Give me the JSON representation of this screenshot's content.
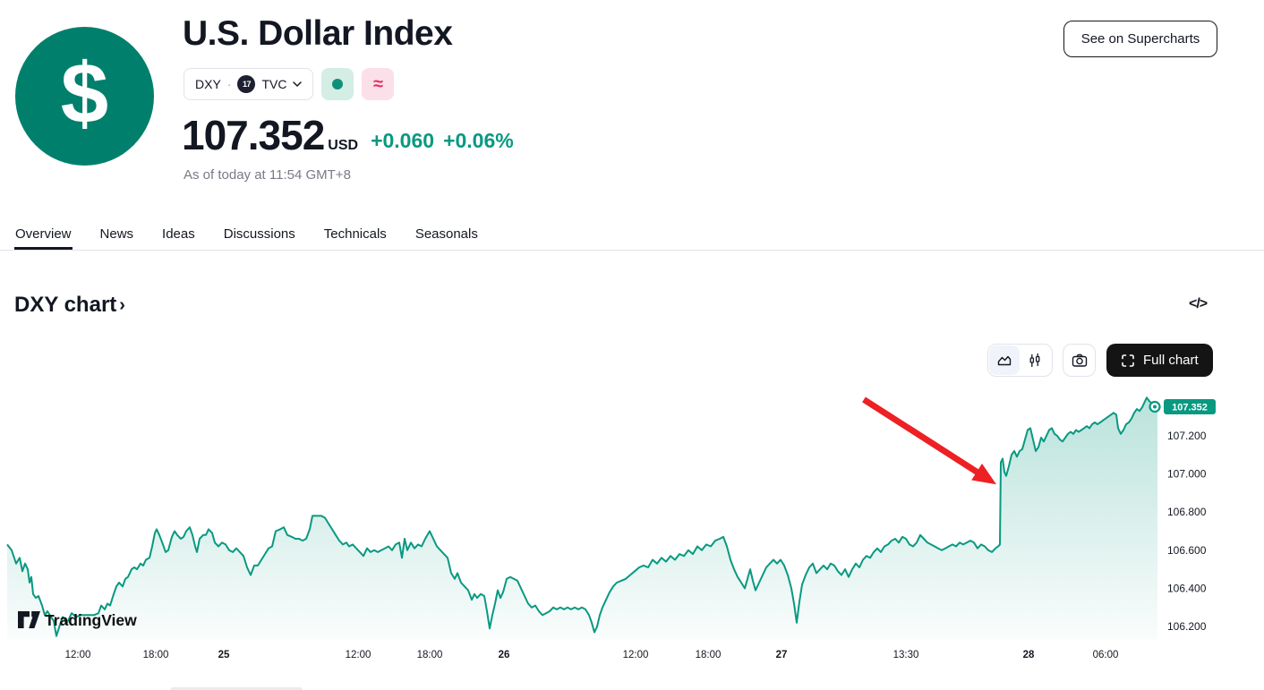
{
  "header": {
    "logo_symbol": "$",
    "title": "U.S. Dollar Index",
    "symbol": "DXY",
    "separator": "·",
    "exchange_logo_text": "17",
    "exchange": "TVC",
    "delayed_symbol": "≈",
    "price": "107.352",
    "currency": "USD",
    "change_abs": "+0.060",
    "change_pct": "+0.06%",
    "as_of": "As of today at 11:54 GMT+8",
    "supercharts_button": "See on Supercharts"
  },
  "tabs": {
    "items": [
      "Overview",
      "News",
      "Ideas",
      "Discussions",
      "Technicals",
      "Seasonals"
    ],
    "active": "Overview"
  },
  "section": {
    "title": "DXY chart",
    "chevron": "›",
    "embed_icon_text": "</>"
  },
  "toolbar": {
    "full_chart_label": "Full chart"
  },
  "watermark": "TradingView",
  "colors": {
    "accent_green": "#089981",
    "logo_bg": "#00806c",
    "market_open_bg": "#d4ede5",
    "market_open_dot": "#0e9178",
    "delayed_bg": "#fbdfe9",
    "delayed_fg": "#e32d5f",
    "arrow_red": "#ed2024",
    "axis_text": "#131722",
    "muted_text": "#787b86",
    "border": "#e0e3eb",
    "button_dark": "#141414"
  },
  "chart_data": {
    "type": "area",
    "title": "DXY chart",
    "legend": "none",
    "grid": false,
    "axis_side": "right",
    "ylim": [
      106.13,
      107.42
    ],
    "x_domain": [
      0,
      1295
    ],
    "y_ticks": [
      {
        "value": 107.2,
        "label": "107.200"
      },
      {
        "value": 107.0,
        "label": "107.000"
      },
      {
        "value": 106.8,
        "label": "106.800"
      },
      {
        "value": 106.6,
        "label": "106.600"
      },
      {
        "value": 106.4,
        "label": "106.400"
      },
      {
        "value": 106.2,
        "label": "106.200"
      }
    ],
    "x_ticks": [
      {
        "x": 87,
        "label": "12:00",
        "bold": false
      },
      {
        "x": 174,
        "label": "18:00",
        "bold": false
      },
      {
        "x": 250,
        "label": "25",
        "bold": true
      },
      {
        "x": 400,
        "label": "12:00",
        "bold": false
      },
      {
        "x": 480,
        "label": "18:00",
        "bold": false
      },
      {
        "x": 563,
        "label": "26",
        "bold": true
      },
      {
        "x": 710,
        "label": "12:00",
        "bold": false
      },
      {
        "x": 791,
        "label": "18:00",
        "bold": false
      },
      {
        "x": 873,
        "label": "27",
        "bold": true
      },
      {
        "x": 1012,
        "label": "13:30",
        "bold": false
      },
      {
        "x": 1149,
        "label": "28",
        "bold": true
      },
      {
        "x": 1235,
        "label": "06:00",
        "bold": false
      }
    ],
    "last_price_label": "107.352",
    "line_color": "#089981",
    "annotations": [
      {
        "type": "arrow",
        "from": [
          965,
          107.39
        ],
        "to": [
          1113,
          106.945
        ],
        "color": "#ed2024"
      }
    ],
    "points": [
      [
        8,
        106.63
      ],
      [
        13,
        106.6
      ],
      [
        18,
        106.53
      ],
      [
        22,
        106.56
      ],
      [
        25,
        106.49
      ],
      [
        28,
        106.53
      ],
      [
        31,
        106.5
      ],
      [
        33,
        106.43
      ],
      [
        35,
        106.46
      ],
      [
        37,
        106.37
      ],
      [
        40,
        106.35
      ],
      [
        43,
        106.36
      ],
      [
        47,
        106.31
      ],
      [
        50,
        106.26
      ],
      [
        53,
        106.28
      ],
      [
        57,
        106.25
      ],
      [
        60,
        106.23
      ],
      [
        63,
        106.15
      ],
      [
        67,
        106.21
      ],
      [
        70,
        106.25
      ],
      [
        75,
        106.22
      ],
      [
        80,
        106.27
      ],
      [
        85,
        106.25
      ],
      [
        90,
        106.26
      ],
      [
        95,
        106.26
      ],
      [
        100,
        106.26
      ],
      [
        105,
        106.26
      ],
      [
        110,
        106.27
      ],
      [
        113,
        106.31
      ],
      [
        117,
        106.29
      ],
      [
        120,
        106.32
      ],
      [
        123,
        106.31
      ],
      [
        127,
        106.37
      ],
      [
        130,
        106.41
      ],
      [
        133,
        106.43
      ],
      [
        137,
        106.41
      ],
      [
        140,
        106.45
      ],
      [
        143,
        106.46
      ],
      [
        147,
        106.5
      ],
      [
        150,
        106.51
      ],
      [
        153,
        106.5
      ],
      [
        157,
        106.53
      ],
      [
        160,
        106.52
      ],
      [
        163,
        106.55
      ],
      [
        167,
        106.56
      ],
      [
        170,
        106.62
      ],
      [
        173,
        106.69
      ],
      [
        175,
        106.71
      ],
      [
        178,
        106.68
      ],
      [
        182,
        106.63
      ],
      [
        185,
        106.59
      ],
      [
        188,
        106.6
      ],
      [
        192,
        106.67
      ],
      [
        195,
        106.7
      ],
      [
        198,
        106.68
      ],
      [
        202,
        106.66
      ],
      [
        205,
        106.67
      ],
      [
        208,
        106.7
      ],
      [
        212,
        106.72
      ],
      [
        215,
        106.68
      ],
      [
        218,
        106.62
      ],
      [
        220,
        106.59
      ],
      [
        223,
        106.66
      ],
      [
        227,
        106.68
      ],
      [
        230,
        106.68
      ],
      [
        233,
        106.71
      ],
      [
        237,
        106.69
      ],
      [
        240,
        106.64
      ],
      [
        244,
        106.62
      ],
      [
        248,
        106.64
      ],
      [
        252,
        106.63
      ],
      [
        256,
        106.6
      ],
      [
        260,
        106.59
      ],
      [
        264,
        106.61
      ],
      [
        268,
        106.59
      ],
      [
        272,
        106.57
      ],
      [
        276,
        106.51
      ],
      [
        280,
        106.47
      ],
      [
        284,
        106.52
      ],
      [
        288,
        106.52
      ],
      [
        292,
        106.55
      ],
      [
        296,
        106.58
      ],
      [
        300,
        106.61
      ],
      [
        304,
        106.62
      ],
      [
        308,
        106.7
      ],
      [
        313,
        106.71
      ],
      [
        317,
        106.72
      ],
      [
        321,
        106.68
      ],
      [
        326,
        106.67
      ],
      [
        330,
        106.66
      ],
      [
        334,
        106.66
      ],
      [
        338,
        106.65
      ],
      [
        342,
        106.66
      ],
      [
        346,
        106.71
      ],
      [
        349,
        106.78
      ],
      [
        354,
        106.78
      ],
      [
        359,
        106.78
      ],
      [
        363,
        106.77
      ],
      [
        367,
        106.74
      ],
      [
        371,
        106.71
      ],
      [
        375,
        106.68
      ],
      [
        379,
        106.65
      ],
      [
        383,
        106.63
      ],
      [
        387,
        106.64
      ],
      [
        390,
        106.62
      ],
      [
        394,
        106.63
      ],
      [
        398,
        106.61
      ],
      [
        402,
        106.59
      ],
      [
        406,
        106.57
      ],
      [
        410,
        106.61
      ],
      [
        414,
        106.59
      ],
      [
        418,
        106.6
      ],
      [
        422,
        106.59
      ],
      [
        426,
        106.6
      ],
      [
        430,
        106.61
      ],
      [
        434,
        106.62
      ],
      [
        438,
        106.6
      ],
      [
        442,
        106.63
      ],
      [
        446,
        106.64
      ],
      [
        449,
        106.56
      ],
      [
        452,
        106.66
      ],
      [
        455,
        106.6
      ],
      [
        459,
        106.64
      ],
      [
        463,
        106.61
      ],
      [
        467,
        106.63
      ],
      [
        471,
        106.62
      ],
      [
        475,
        106.66
      ],
      [
        480,
        106.7
      ],
      [
        484,
        106.66
      ],
      [
        488,
        106.62
      ],
      [
        492,
        106.6
      ],
      [
        496,
        106.58
      ],
      [
        500,
        106.56
      ],
      [
        504,
        106.48
      ],
      [
        508,
        106.45
      ],
      [
        511,
        106.48
      ],
      [
        515,
        106.43
      ],
      [
        519,
        106.41
      ],
      [
        523,
        106.39
      ],
      [
        527,
        106.34
      ],
      [
        530,
        106.37
      ],
      [
        533,
        106.35
      ],
      [
        537,
        106.37
      ],
      [
        541,
        106.36
      ],
      [
        544,
        106.28
      ],
      [
        547,
        106.19
      ],
      [
        550,
        106.26
      ],
      [
        553,
        106.32
      ],
      [
        556,
        106.39
      ],
      [
        559,
        106.35
      ],
      [
        562,
        106.38
      ],
      [
        566,
        106.45
      ],
      [
        570,
        106.46
      ],
      [
        574,
        106.45
      ],
      [
        578,
        106.44
      ],
      [
        582,
        106.4
      ],
      [
        586,
        106.36
      ],
      [
        590,
        106.32
      ],
      [
        594,
        106.3
      ],
      [
        598,
        106.31
      ],
      [
        602,
        106.28
      ],
      [
        606,
        106.26
      ],
      [
        610,
        106.27
      ],
      [
        614,
        106.28
      ],
      [
        618,
        106.3
      ],
      [
        622,
        106.29
      ],
      [
        626,
        106.3
      ],
      [
        630,
        106.29
      ],
      [
        634,
        106.3
      ],
      [
        638,
        106.29
      ],
      [
        642,
        106.3
      ],
      [
        646,
        106.29
      ],
      [
        650,
        106.3
      ],
      [
        654,
        106.29
      ],
      [
        658,
        106.26
      ],
      [
        661,
        106.22
      ],
      [
        664,
        106.17
      ],
      [
        667,
        106.2
      ],
      [
        670,
        106.26
      ],
      [
        673,
        106.3
      ],
      [
        677,
        106.34
      ],
      [
        681,
        106.38
      ],
      [
        685,
        106.41
      ],
      [
        689,
        106.43
      ],
      [
        694,
        106.44
      ],
      [
        699,
        106.45
      ],
      [
        704,
        106.47
      ],
      [
        709,
        106.49
      ],
      [
        714,
        106.51
      ],
      [
        719,
        106.52
      ],
      [
        724,
        106.51
      ],
      [
        729,
        106.55
      ],
      [
        734,
        106.53
      ],
      [
        739,
        106.56
      ],
      [
        744,
        106.54
      ],
      [
        749,
        106.57
      ],
      [
        754,
        106.55
      ],
      [
        759,
        106.58
      ],
      [
        764,
        106.57
      ],
      [
        769,
        106.6
      ],
      [
        774,
        106.58
      ],
      [
        779,
        106.62
      ],
      [
        784,
        106.6
      ],
      [
        789,
        106.63
      ],
      [
        794,
        106.62
      ],
      [
        799,
        106.65
      ],
      [
        804,
        106.66
      ],
      [
        808,
        106.67
      ],
      [
        812,
        106.62
      ],
      [
        816,
        106.55
      ],
      [
        820,
        106.5
      ],
      [
        824,
        106.46
      ],
      [
        828,
        106.43
      ],
      [
        832,
        106.4
      ],
      [
        835,
        106.45
      ],
      [
        838,
        106.5
      ],
      [
        841,
        106.44
      ],
      [
        844,
        106.39
      ],
      [
        848,
        106.43
      ],
      [
        852,
        106.47
      ],
      [
        856,
        106.51
      ],
      [
        860,
        106.53
      ],
      [
        864,
        106.55
      ],
      [
        868,
        106.53
      ],
      [
        872,
        106.55
      ],
      [
        876,
        106.52
      ],
      [
        880,
        106.47
      ],
      [
        884,
        106.4
      ],
      [
        887,
        106.32
      ],
      [
        890,
        106.22
      ],
      [
        893,
        106.33
      ],
      [
        896,
        106.42
      ],
      [
        900,
        106.47
      ],
      [
        904,
        106.51
      ],
      [
        908,
        106.53
      ],
      [
        912,
        106.48
      ],
      [
        916,
        106.5
      ],
      [
        920,
        106.52
      ],
      [
        924,
        106.5
      ],
      [
        928,
        106.53
      ],
      [
        932,
        106.52
      ],
      [
        936,
        106.49
      ],
      [
        940,
        106.47
      ],
      [
        944,
        106.5
      ],
      [
        948,
        106.46
      ],
      [
        952,
        106.5
      ],
      [
        956,
        106.53
      ],
      [
        960,
        106.51
      ],
      [
        964,
        106.55
      ],
      [
        968,
        106.57
      ],
      [
        972,
        106.56
      ],
      [
        976,
        106.59
      ],
      [
        980,
        106.61
      ],
      [
        984,
        106.59
      ],
      [
        988,
        106.62
      ],
      [
        992,
        106.63
      ],
      [
        996,
        106.65
      ],
      [
        1000,
        106.66
      ],
      [
        1004,
        106.64
      ],
      [
        1008,
        106.67
      ],
      [
        1012,
        106.66
      ],
      [
        1016,
        106.63
      ],
      [
        1020,
        106.62
      ],
      [
        1024,
        106.64
      ],
      [
        1028,
        106.68
      ],
      [
        1032,
        106.66
      ],
      [
        1036,
        106.64
      ],
      [
        1040,
        106.63
      ],
      [
        1044,
        106.62
      ],
      [
        1048,
        106.61
      ],
      [
        1052,
        106.6
      ],
      [
        1056,
        106.61
      ],
      [
        1060,
        106.62
      ],
      [
        1064,
        106.63
      ],
      [
        1068,
        106.62
      ],
      [
        1072,
        106.64
      ],
      [
        1076,
        106.63
      ],
      [
        1080,
        106.64
      ],
      [
        1084,
        106.65
      ],
      [
        1088,
        106.64
      ],
      [
        1092,
        106.61
      ],
      [
        1096,
        106.63
      ],
      [
        1100,
        106.62
      ],
      [
        1104,
        106.6
      ],
      [
        1108,
        106.59
      ],
      [
        1112,
        106.61
      ],
      [
        1115,
        106.62
      ],
      [
        1117,
        106.63
      ],
      [
        1118,
        107.06
      ],
      [
        1120,
        107.08
      ],
      [
        1122,
        107.01
      ],
      [
        1124,
        106.99
      ],
      [
        1127,
        107.04
      ],
      [
        1130,
        107.1
      ],
      [
        1133,
        107.12
      ],
      [
        1136,
        107.09
      ],
      [
        1139,
        107.12
      ],
      [
        1142,
        107.13
      ],
      [
        1145,
        107.18
      ],
      [
        1148,
        107.23
      ],
      [
        1151,
        107.24
      ],
      [
        1154,
        107.18
      ],
      [
        1157,
        107.12
      ],
      [
        1160,
        107.14
      ],
      [
        1163,
        107.19
      ],
      [
        1166,
        107.17
      ],
      [
        1169,
        107.2
      ],
      [
        1172,
        107.23
      ],
      [
        1175,
        107.24
      ],
      [
        1178,
        107.21
      ],
      [
        1181,
        107.2
      ],
      [
        1184,
        107.18
      ],
      [
        1187,
        107.17
      ],
      [
        1190,
        107.19
      ],
      [
        1193,
        107.21
      ],
      [
        1196,
        107.22
      ],
      [
        1199,
        107.21
      ],
      [
        1202,
        107.23
      ],
      [
        1205,
        107.22
      ],
      [
        1208,
        107.23
      ],
      [
        1211,
        107.24
      ],
      [
        1214,
        107.25
      ],
      [
        1217,
        107.24
      ],
      [
        1220,
        107.26
      ],
      [
        1223,
        107.27
      ],
      [
        1226,
        107.26
      ],
      [
        1229,
        107.27
      ],
      [
        1232,
        107.28
      ],
      [
        1235,
        107.29
      ],
      [
        1238,
        107.3
      ],
      [
        1241,
        107.31
      ],
      [
        1244,
        107.32
      ],
      [
        1247,
        107.31
      ],
      [
        1249,
        107.24
      ],
      [
        1252,
        107.21
      ],
      [
        1255,
        107.23
      ],
      [
        1258,
        107.26
      ],
      [
        1261,
        107.27
      ],
      [
        1264,
        107.29
      ],
      [
        1267,
        107.32
      ],
      [
        1270,
        107.34
      ],
      [
        1273,
        107.33
      ],
      [
        1276,
        107.35
      ],
      [
        1279,
        107.38
      ],
      [
        1281,
        107.4
      ],
      [
        1284,
        107.38
      ],
      [
        1287,
        107.37
      ],
      [
        1290,
        107.36
      ],
      [
        1293,
        107.352
      ]
    ]
  }
}
